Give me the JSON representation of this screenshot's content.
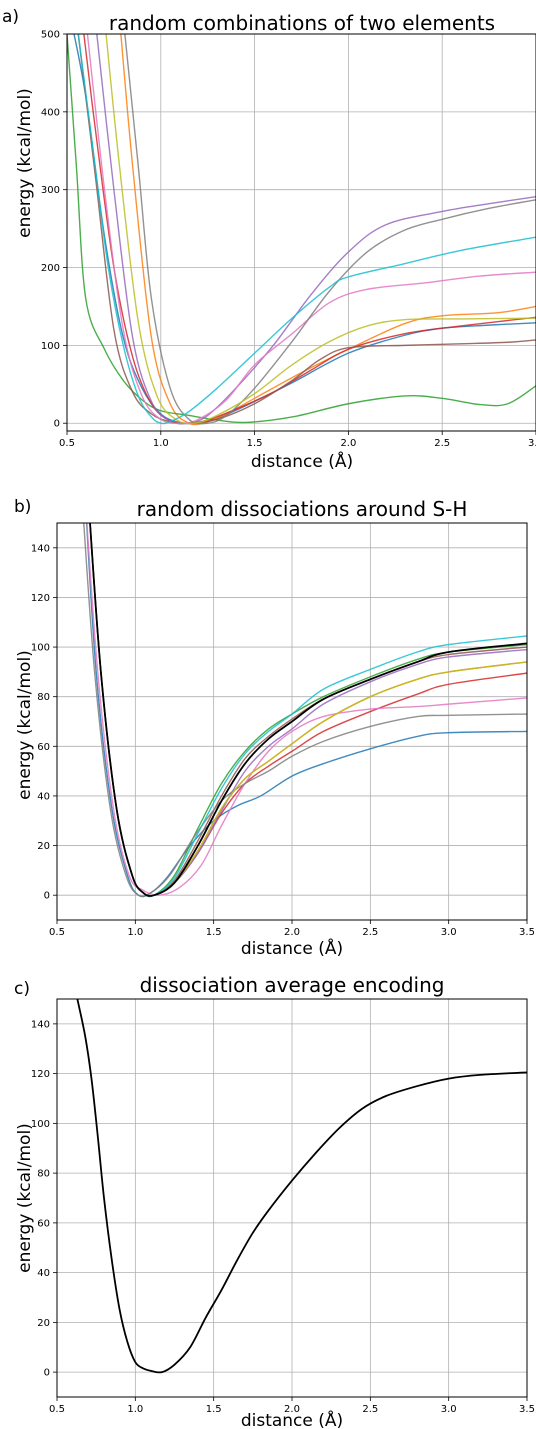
{
  "chart_data": [
    {
      "type": "line",
      "panel_label": "a)",
      "title": "random combinations of two elements",
      "xlabel": "distance (Å)",
      "ylabel": "energy (kcal/mol)",
      "xlim": [
        0.5,
        3.0
      ],
      "ylim": [
        -10,
        500
      ],
      "xticks": [
        0.5,
        1.0,
        1.5,
        2.0,
        2.5,
        3.0
      ],
      "xtick_labels": [
        "0.5",
        "1.0",
        "1.5",
        "2.0",
        "2.5",
        "3.0"
      ],
      "yticks": [
        0,
        100,
        200,
        300,
        400,
        500
      ],
      "ytick_labels": [
        "0",
        "100",
        "200",
        "300",
        "400",
        "500"
      ],
      "grid": true,
      "series": [
        {
          "color": "#1f77b4",
          "x": [
            0.52,
            0.6,
            0.7,
            0.8,
            0.9,
            1.0,
            1.1,
            1.2,
            1.3,
            1.5,
            1.7,
            2.0,
            2.3,
            2.5,
            2.75,
            3.0
          ],
          "y": [
            520,
            420,
            240,
            110,
            45,
            12,
            1,
            0,
            6,
            28,
            52,
            90,
            113,
            122,
            126,
            129
          ]
        },
        {
          "color": "#ff7f0e",
          "x": [
            0.78,
            0.85,
            0.95,
            1.05,
            1.15,
            1.25,
            1.35,
            1.5,
            1.75,
            2.0,
            2.3,
            2.5,
            2.8,
            3.0
          ],
          "y": [
            520,
            330,
            110,
            25,
            0,
            2,
            12,
            32,
            65,
            95,
            128,
            138,
            142,
            150
          ]
        },
        {
          "color": "#2ca02c",
          "x": [
            0.5,
            0.55,
            0.6,
            0.7,
            0.8,
            0.9,
            1.0,
            1.15,
            1.3,
            1.45,
            1.7,
            2.0,
            2.3,
            2.5,
            2.7,
            2.85,
            3.0
          ],
          "y": [
            500,
            330,
            160,
            95,
            55,
            30,
            16,
            10,
            4,
            1,
            8,
            25,
            35,
            32,
            24,
            25,
            48
          ]
        },
        {
          "color": "#d62728",
          "x": [
            0.58,
            0.65,
            0.75,
            0.85,
            0.95,
            1.05,
            1.15,
            1.25,
            1.4,
            1.6,
            1.8,
            2.0,
            2.3,
            2.6,
            3.0
          ],
          "y": [
            520,
            380,
            200,
            85,
            25,
            3,
            0,
            4,
            18,
            40,
            68,
            95,
            115,
            125,
            136
          ]
        },
        {
          "color": "#9467bd",
          "x": [
            0.65,
            0.75,
            0.85,
            0.95,
            1.05,
            1.15,
            1.25,
            1.4,
            1.6,
            1.8,
            2.0,
            2.2,
            2.5,
            2.75,
            3.0
          ],
          "y": [
            520,
            300,
            110,
            28,
            3,
            0,
            10,
            45,
            100,
            165,
            220,
            255,
            272,
            282,
            291
          ]
        },
        {
          "color": "#8c564b",
          "x": [
            0.55,
            0.65,
            0.75,
            0.85,
            0.95,
            1.05,
            1.15,
            1.3,
            1.5,
            1.7,
            1.85,
            2.0,
            2.3,
            2.6,
            2.85,
            3.0
          ],
          "y": [
            520,
            320,
            120,
            40,
            12,
            2,
            0,
            5,
            25,
            55,
            82,
            97,
            100,
            102,
            104,
            107
          ]
        },
        {
          "color": "#e377c2",
          "x": [
            0.6,
            0.7,
            0.8,
            0.9,
            1.0,
            1.1,
            1.2,
            1.35,
            1.5,
            1.7,
            1.9,
            2.1,
            2.4,
            2.7,
            3.0
          ],
          "y": [
            520,
            300,
            120,
            35,
            5,
            0,
            5,
            30,
            75,
            115,
            155,
            172,
            180,
            189,
            194
          ]
        },
        {
          "color": "#7f7f7f",
          "x": [
            0.8,
            0.88,
            0.95,
            1.05,
            1.15,
            1.25,
            1.35,
            1.5,
            1.7,
            1.9,
            2.1,
            2.3,
            2.5,
            2.75,
            3.0
          ],
          "y": [
            520,
            330,
            160,
            45,
            5,
            0,
            10,
            45,
            105,
            170,
            220,
            248,
            262,
            276,
            287
          ]
        },
        {
          "color": "#bcbd22",
          "x": [
            0.7,
            0.78,
            0.88,
            0.98,
            1.08,
            1.18,
            1.3,
            1.5,
            1.7,
            1.9,
            2.1,
            2.3,
            2.6,
            3.0
          ],
          "y": [
            520,
            330,
            130,
            35,
            5,
            0,
            10,
            38,
            75,
            105,
            125,
            133,
            134,
            135
          ]
        },
        {
          "color": "#17becf",
          "x": [
            0.55,
            0.65,
            0.72,
            0.8,
            0.88,
            0.95,
            1.0,
            1.05,
            1.15,
            1.3,
            1.5,
            1.7,
            1.9,
            2.0,
            2.3,
            2.6,
            3.0
          ],
          "y": [
            520,
            330,
            200,
            100,
            35,
            8,
            0,
            2,
            15,
            45,
            90,
            135,
            175,
            188,
            205,
            222,
            239
          ]
        }
      ]
    },
    {
      "type": "line",
      "panel_label": "b)",
      "title": "random dissociations around S-H",
      "xlabel": "distance (Å)",
      "ylabel": "energy (kcal/mol)",
      "xlim": [
        0.5,
        3.5
      ],
      "ylim": [
        -10,
        150
      ],
      "xticks": [
        0.5,
        1.0,
        1.5,
        2.0,
        2.5,
        3.0,
        3.5
      ],
      "xtick_labels": [
        "0.5",
        "1.0",
        "1.5",
        "2.0",
        "2.5",
        "3.0",
        "3.5"
      ],
      "yticks": [
        0,
        20,
        40,
        60,
        80,
        100,
        120,
        140
      ],
      "ytick_labels": [
        "0",
        "20",
        "40",
        "60",
        "80",
        "100",
        "120",
        "140"
      ],
      "grid": true,
      "series": [
        {
          "color": "#1f77b4",
          "x": [
            0.68,
            0.75,
            0.85,
            0.95,
            1.02,
            1.1,
            1.2,
            1.35,
            1.5,
            1.65,
            1.8,
            2.0,
            2.2,
            2.5,
            2.8,
            3.0,
            3.5
          ],
          "y": [
            160,
            90,
            35,
            8,
            0,
            1,
            7,
            20,
            30,
            36,
            40,
            48,
            53,
            59,
            64,
            65.5,
            66
          ]
        },
        {
          "color": "#ff7f0e",
          "x": [
            0.7,
            0.78,
            0.88,
            0.98,
            1.05,
            1.12,
            1.25,
            1.4,
            1.55,
            1.7,
            1.85,
            2.0,
            2.2,
            2.5,
            2.8,
            3.0,
            3.5
          ],
          "y": [
            160,
            90,
            35,
            8,
            1,
            0,
            5,
            18,
            35,
            47,
            54,
            61,
            70,
            80,
            87,
            90,
            94
          ]
        },
        {
          "color": "#2ca02c",
          "x": [
            0.7,
            0.78,
            0.88,
            0.98,
            1.05,
            1.12,
            1.25,
            1.4,
            1.55,
            1.7,
            1.85,
            2.0,
            2.2,
            2.5,
            2.8,
            3.0,
            3.5
          ],
          "y": [
            160,
            90,
            35,
            8,
            1,
            0,
            8,
            27,
            45,
            58,
            67,
            73,
            80,
            88,
            95,
            98,
            101
          ]
        },
        {
          "color": "#d62728",
          "x": [
            0.7,
            0.78,
            0.88,
            0.98,
            1.05,
            1.12,
            1.25,
            1.4,
            1.55,
            1.7,
            1.85,
            2.0,
            2.2,
            2.5,
            2.8,
            3.0,
            3.5
          ],
          "y": [
            160,
            90,
            35,
            8,
            1,
            0,
            5,
            17,
            33,
            45,
            52,
            58,
            66,
            74,
            81,
            85,
            89.5
          ]
        },
        {
          "color": "#9467bd",
          "x": [
            0.7,
            0.78,
            0.88,
            0.98,
            1.05,
            1.12,
            1.25,
            1.4,
            1.55,
            1.7,
            1.85,
            2.0,
            2.2,
            2.5,
            2.8,
            3.0,
            3.5
          ],
          "y": [
            160,
            90,
            35,
            8,
            1,
            0,
            5,
            17,
            34,
            50,
            60,
            67,
            77,
            86,
            93,
            96,
            99
          ]
        },
        {
          "color": "#8c564b",
          "x": [
            0.7,
            0.78,
            0.88,
            0.98,
            1.05,
            1.12,
            1.25,
            1.4,
            1.55,
            1.7,
            1.85,
            2.0,
            2.2,
            2.5,
            2.8,
            3.0,
            3.5
          ],
          "y": [
            160,
            90,
            35,
            8,
            1,
            0,
            6,
            22,
            40,
            55,
            64,
            71,
            79,
            87,
            94,
            97,
            100
          ]
        },
        {
          "color": "#e377c2",
          "x": [
            0.68,
            0.76,
            0.86,
            0.96,
            1.05,
            1.15,
            1.28,
            1.42,
            1.55,
            1.7,
            1.85,
            2.0,
            2.2,
            2.5,
            2.8,
            3.0,
            3.5
          ],
          "y": [
            160,
            90,
            35,
            8,
            2,
            0,
            3,
            12,
            28,
            45,
            58,
            66,
            72,
            75,
            76,
            77,
            79.5
          ]
        },
        {
          "color": "#7f7f7f",
          "x": [
            0.66,
            0.74,
            0.84,
            0.94,
            1.02,
            1.1,
            1.22,
            1.38,
            1.55,
            1.7,
            1.85,
            2.0,
            2.2,
            2.5,
            2.8,
            3.0,
            3.5
          ],
          "y": [
            160,
            90,
            35,
            8,
            0,
            1,
            8,
            24,
            38,
            45,
            50,
            56,
            62,
            68,
            72,
            72.5,
            73
          ]
        },
        {
          "color": "#bcbd22",
          "x": [
            0.7,
            0.78,
            0.88,
            0.98,
            1.05,
            1.12,
            1.25,
            1.4,
            1.55,
            1.7,
            1.85,
            2.0,
            2.2,
            2.5,
            2.8,
            3.0,
            3.5
          ],
          "y": [
            160,
            90,
            35,
            8,
            1,
            0,
            5,
            18,
            35,
            47,
            54,
            61,
            70,
            80,
            87,
            90,
            94
          ]
        },
        {
          "color": "#17becf",
          "x": [
            0.7,
            0.78,
            0.88,
            0.98,
            1.05,
            1.12,
            1.25,
            1.4,
            1.55,
            1.7,
            1.85,
            2.0,
            2.2,
            2.5,
            2.8,
            3.0,
            3.5
          ],
          "y": [
            160,
            90,
            35,
            8,
            1,
            0,
            7,
            25,
            43,
            57,
            66,
            73,
            83,
            91,
            98,
            101,
            104.5
          ]
        },
        {
          "color": "#000000",
          "x": [
            0.7,
            0.78,
            0.88,
            0.98,
            1.05,
            1.12,
            1.25,
            1.4,
            1.55,
            1.7,
            1.85,
            2.0,
            2.2,
            2.5,
            2.8,
            3.0,
            3.5
          ],
          "y": [
            160,
            90,
            35,
            8,
            1,
            0,
            5,
            20,
            38,
            53,
            63,
            70,
            79,
            87,
            94,
            98,
            101.5
          ]
        }
      ]
    },
    {
      "type": "line",
      "panel_label": "c)",
      "title": "dissociation average encoding",
      "xlabel": "distance (Å)",
      "ylabel": "energy (kcal/mol)",
      "xlim": [
        0.5,
        3.5
      ],
      "ylim": [
        -10,
        150
      ],
      "xticks": [
        0.5,
        1.0,
        1.5,
        2.0,
        2.5,
        3.0,
        3.5
      ],
      "xtick_labels": [
        "0.5",
        "1.0",
        "1.5",
        "2.0",
        "2.5",
        "3.0",
        "3.5"
      ],
      "yticks": [
        0,
        20,
        40,
        60,
        80,
        100,
        120,
        140
      ],
      "ytick_labels": [
        "0",
        "20",
        "40",
        "60",
        "80",
        "100",
        "120",
        "140"
      ],
      "grid": true,
      "series": [
        {
          "color": "#000000",
          "x": [
            0.63,
            0.68,
            0.72,
            0.76,
            0.8,
            0.85,
            0.9,
            0.95,
            1.0,
            1.05,
            1.1,
            1.17,
            1.25,
            1.35,
            1.45,
            1.55,
            1.65,
            1.75,
            1.85,
            2.0,
            2.15,
            2.3,
            2.45,
            2.6,
            2.8,
            3.0,
            3.2,
            3.5
          ],
          "y": [
            150,
            135,
            118,
            95,
            70,
            45,
            25,
            12,
            4,
            1.5,
            0.5,
            0,
            3,
            10,
            22,
            33,
            45,
            56,
            65,
            77,
            88,
            98,
            106,
            111,
            115,
            118,
            119.5,
            120.5
          ]
        }
      ]
    }
  ]
}
